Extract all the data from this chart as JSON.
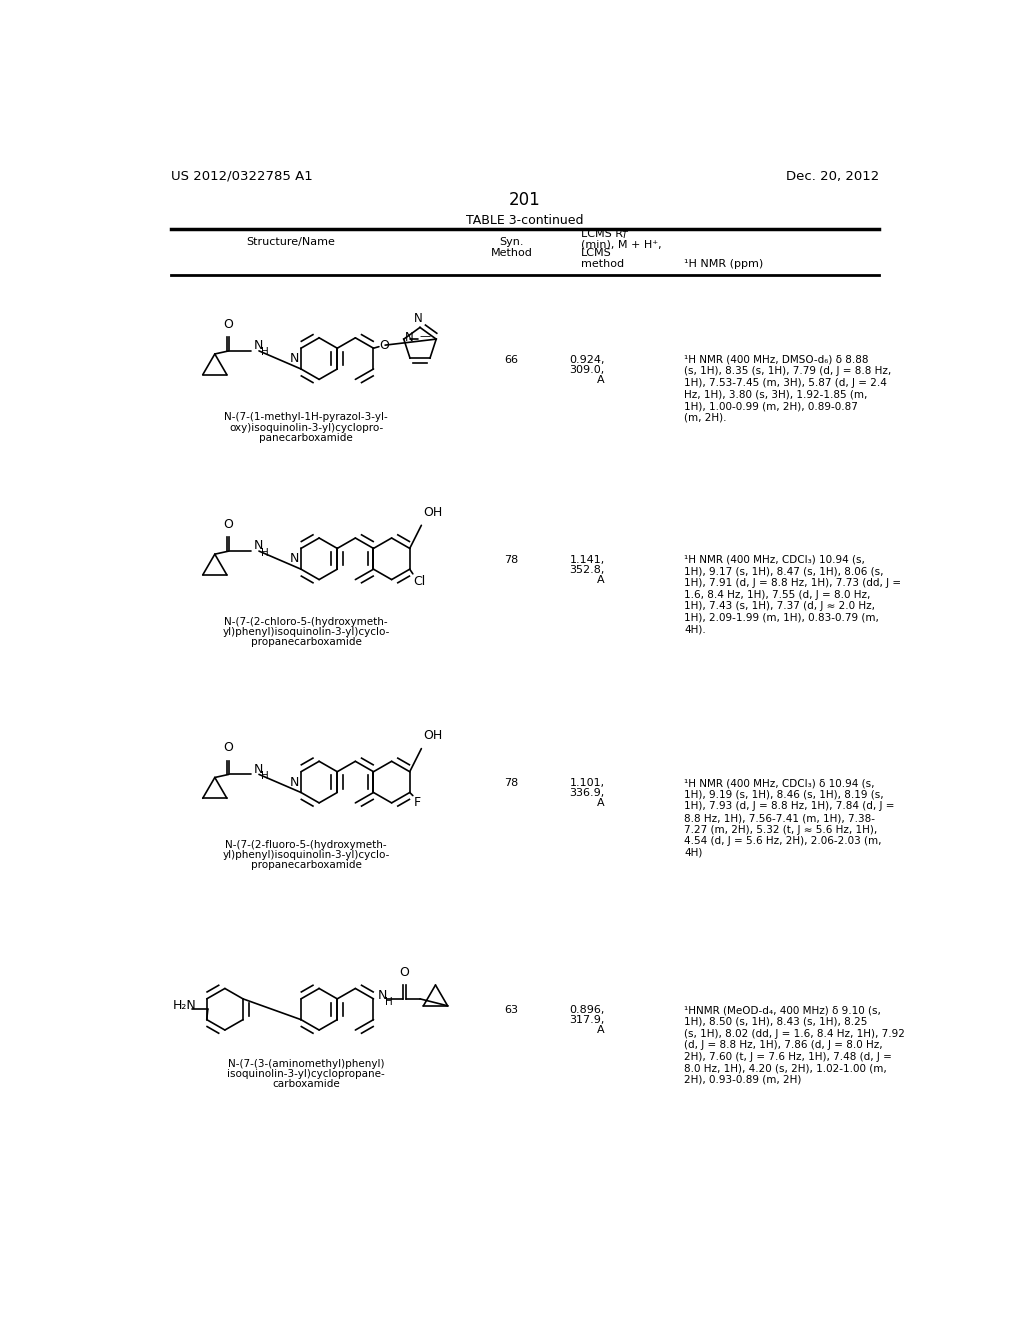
{
  "page_number": "201",
  "patent_number": "US 2012/0322785 A1",
  "patent_date": "Dec. 20, 2012",
  "table_title": "TABLE 3-continued",
  "background_color": "#ffffff",
  "rows": [
    {
      "syn_method": "66",
      "lcms_line1": "0.924,",
      "lcms_line2": "309.0,",
      "lcms_line3": "A",
      "nmr": "¹H NMR (400 MHz, DMSO-d₆) δ 8.88\n(s, 1H), 8.35 (s, 1H), 7.79 (d, J = 8.8 Hz,\n1H), 7.53-7.45 (m, 3H), 5.87 (d, J = 2.4\nHz, 1H), 3.80 (s, 3H), 1.92-1.85 (m,\n1H), 1.00-0.99 (m, 2H), 0.89-0.87\n(m, 2H).",
      "name_line1": "N-(7-(1-methyl-1H-pyrazol-3-yl-",
      "name_line2": "oxy)isoquinolin-3-yl)cyclopro-",
      "name_line3": "panecarboxamide"
    },
    {
      "syn_method": "78",
      "lcms_line1": "1.141,",
      "lcms_line2": "352.8,",
      "lcms_line3": "A",
      "nmr": "¹H NMR (400 MHz, CDCl₃) 10.94 (s,\n1H), 9.17 (s, 1H), 8.47 (s, 1H), 8.06 (s,\n1H), 7.91 (d, J = 8.8 Hz, 1H), 7.73 (dd, J =\n1.6, 8.4 Hz, 1H), 7.55 (d, J = 8.0 Hz,\n1H), 7.43 (s, 1H), 7.37 (d, J ≈ 2.0 Hz,\n1H), 2.09-1.99 (m, 1H), 0.83-0.79 (m,\n4H).",
      "name_line1": "N-(7-(2-chloro-5-(hydroxymeth-",
      "name_line2": "yl)phenyl)isoquinolin-3-yl)cyclo-",
      "name_line3": "propanecarboxamide"
    },
    {
      "syn_method": "78",
      "lcms_line1": "1.101,",
      "lcms_line2": "336.9,",
      "lcms_line3": "A",
      "nmr": "¹H NMR (400 MHz, CDCl₃) δ 10.94 (s,\n1H), 9.19 (s, 1H), 8.46 (s, 1H), 8.19 (s,\n1H), 7.93 (d, J = 8.8 Hz, 1H), 7.84 (d, J =\n8.8 Hz, 1H), 7.56-7.41 (m, 1H), 7.38-\n7.27 (m, 2H), 5.32 (t, J ≈ 5.6 Hz, 1H),\n4.54 (d, J = 5.6 Hz, 2H), 2.06-2.03 (m,\n4H)",
      "name_line1": "N-(7-(2-fluoro-5-(hydroxymeth-",
      "name_line2": "yl)phenyl)isoquinolin-3-yl)cyclo-",
      "name_line3": "propanecarboxamide"
    },
    {
      "syn_method": "63",
      "lcms_line1": "0.896,",
      "lcms_line2": "317.9,",
      "lcms_line3": "A",
      "nmr": "¹HNMR (MeOD-d₄, 400 MHz) δ 9.10 (s,\n1H), 8.50 (s, 1H), 8.43 (s, 1H), 8.25\n(s, 1H), 8.02 (dd, J = 1.6, 8.4 Hz, 1H), 7.92\n(d, J = 8.8 Hz, 1H), 7.86 (d, J = 8.0 Hz,\n2H), 7.60 (t, J = 7.6 Hz, 1H), 7.48 (d, J =\n8.0 Hz, 1H), 4.20 (s, 2H), 1.02-1.00 (m,\n2H), 0.93-0.89 (m, 2H)",
      "name_line1": "N-(7-(3-(aminomethyl)phenyl)",
      "name_line2": "isoquinolin-3-yl)cyclopropane-",
      "name_line3": "carboxamide"
    }
  ]
}
